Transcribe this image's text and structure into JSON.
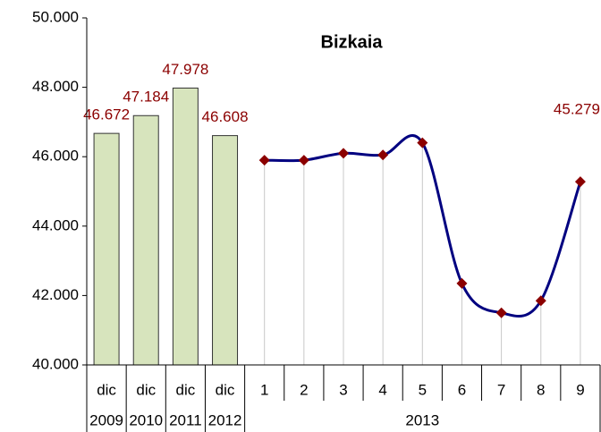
{
  "chart_data": {
    "type": "combo",
    "title": "Bizkaia",
    "categories": [
      "dic",
      "dic",
      "dic",
      "dic",
      "1",
      "2",
      "3",
      "4",
      "5",
      "6",
      "7",
      "8",
      "9"
    ],
    "groups": [
      {
        "label": "2009",
        "span": 1
      },
      {
        "label": "2010",
        "span": 1
      },
      {
        "label": "2011",
        "span": 1
      },
      {
        "label": "2012",
        "span": 1
      },
      {
        "label": "2013",
        "span": 9
      }
    ],
    "series": [
      {
        "type": "bar",
        "color": "#d7e4bd",
        "values": [
          46672,
          47184,
          47978,
          46608,
          null,
          null,
          null,
          null,
          null,
          null,
          null,
          null,
          null
        ],
        "value_labels": [
          "46.672",
          "47.184",
          "47.978",
          "46.608",
          null,
          null,
          null,
          null,
          null,
          null,
          null,
          null,
          null
        ]
      },
      {
        "type": "line",
        "color": "#000080",
        "marker_color": "#8b0000",
        "values": [
          null,
          null,
          null,
          null,
          45900,
          45900,
          46100,
          46050,
          46400,
          42350,
          41500,
          41850,
          45279
        ],
        "value_labels": [
          null,
          null,
          null,
          null,
          null,
          null,
          null,
          null,
          null,
          null,
          null,
          null,
          "45.279"
        ]
      }
    ],
    "ylim": [
      40000,
      50000
    ],
    "yticks": [
      {
        "value": 40000,
        "label": "40.000"
      },
      {
        "value": 42000,
        "label": "42.000"
      },
      {
        "value": 44000,
        "label": "44.000"
      },
      {
        "value": 46000,
        "label": "46.000"
      },
      {
        "value": 48000,
        "label": "48.000"
      },
      {
        "value": 50000,
        "label": "50.000"
      }
    ]
  }
}
